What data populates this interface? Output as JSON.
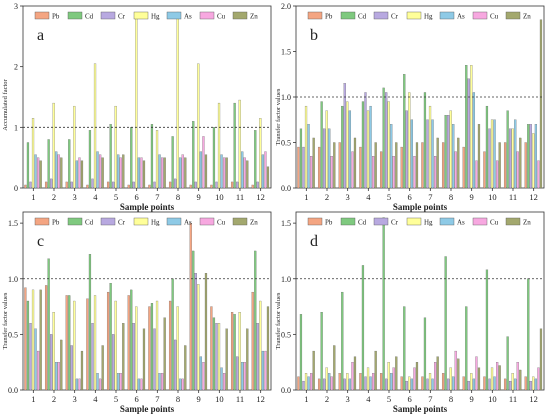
{
  "elements": [
    {
      "name": "Pb",
      "color": "#f4a582"
    },
    {
      "name": "Cd",
      "color": "#7fc97f"
    },
    {
      "name": "Cr",
      "color": "#b8a9e0"
    },
    {
      "name": "Hg",
      "color": "#ffff99"
    },
    {
      "name": "As",
      "color": "#8ecae6"
    },
    {
      "name": "Cu",
      "color": "#f7a8e0"
    },
    {
      "name": "Zn",
      "color": "#a3a86e"
    }
  ],
  "chart_data": [
    {
      "type": "bar",
      "panel_label": "a",
      "ylabel": "Accumulated factor",
      "xlabel": "Sample points",
      "categories": [
        "1",
        "2",
        "3",
        "4",
        "5",
        "6",
        "7",
        "8",
        "9",
        "10",
        "11",
        "12"
      ],
      "ylim": [
        0,
        3
      ],
      "yticks": [
        0,
        1,
        2,
        3
      ],
      "reference_line": 1,
      "series": [
        {
          "name": "Pb",
          "values": [
            0.05,
            0.1,
            0.1,
            0.05,
            0.1,
            0.05,
            0.05,
            0.1,
            0.05,
            0.05,
            0.1,
            0.05
          ]
        },
        {
          "name": "Cd",
          "values": [
            0.75,
            0.8,
            0.8,
            0.95,
            1.05,
            1.0,
            1.05,
            0.85,
            1.1,
            1.0,
            1.4,
            0.95
          ]
        },
        {
          "name": "Cr",
          "values": [
            0.1,
            0.15,
            0.1,
            0.15,
            0.1,
            0.1,
            0.1,
            0.15,
            0.1,
            0.1,
            0.1,
            0.1
          ]
        },
        {
          "name": "Hg",
          "values": [
            1.15,
            1.4,
            1.35,
            2.05,
            1.35,
            2.85,
            0.95,
            2.9,
            2.05,
            1.4,
            1.45,
            1.15
          ]
        },
        {
          "name": "As",
          "values": [
            0.55,
            0.6,
            0.45,
            0.6,
            0.55,
            0.5,
            0.55,
            0.5,
            0.6,
            0.55,
            0.6,
            0.55
          ]
        },
        {
          "name": "Cu",
          "values": [
            0.5,
            0.55,
            0.5,
            0.55,
            0.5,
            0.5,
            0.5,
            0.55,
            0.85,
            0.5,
            0.5,
            0.6
          ]
        },
        {
          "name": "Zn",
          "values": [
            0.45,
            0.5,
            0.45,
            0.5,
            0.55,
            0.45,
            0.5,
            0.5,
            0.55,
            0.5,
            0.45,
            0.35
          ]
        }
      ]
    },
    {
      "type": "bar",
      "panel_label": "b",
      "ylabel": "Transfer factor values",
      "xlabel": "Sample points",
      "categories": [
        "1",
        "2",
        "3",
        "4",
        "5",
        "6",
        "7",
        "8",
        "9",
        "10",
        "11",
        "12"
      ],
      "ylim": [
        0,
        2
      ],
      "yticks": [
        0.0,
        0.5,
        1.0,
        1.5,
        2.0
      ],
      "reference_line": 1,
      "series": [
        {
          "name": "Pb",
          "values": [
            0.45,
            0.45,
            0.5,
            0.45,
            0.4,
            0.45,
            0.5,
            0.5,
            0.45,
            0.4,
            0.5,
            0.5
          ]
        },
        {
          "name": "Cd",
          "values": [
            0.65,
            0.95,
            0.9,
            0.95,
            1.1,
            1.25,
            1.05,
            0.8,
            1.35,
            0.9,
            0.85,
            0.7
          ]
        },
        {
          "name": "Cr",
          "values": [
            0.45,
            0.65,
            1.15,
            1.05,
            1.05,
            0.85,
            0.75,
            0.8,
            1.2,
            0.65,
            0.65,
            0.7
          ]
        },
        {
          "name": "Hg",
          "values": [
            0.9,
            0.85,
            0.95,
            0.85,
            0.95,
            1.05,
            0.9,
            0.85,
            1.35,
            0.75,
            0.65,
            0.6
          ]
        },
        {
          "name": "As",
          "values": [
            0.7,
            0.65,
            0.85,
            0.9,
            0.7,
            0.75,
            0.75,
            0.7,
            1.05,
            0.75,
            0.75,
            0.7
          ]
        },
        {
          "name": "Cu",
          "values": [
            0.35,
            0.35,
            0.4,
            0.35,
            0.35,
            0.35,
            0.35,
            0.4,
            0.3,
            0.3,
            0.4,
            0.3
          ]
        },
        {
          "name": "Zn",
          "values": [
            0.55,
            0.5,
            0.55,
            0.5,
            0.5,
            0.5,
            0.55,
            0.55,
            0.7,
            0.5,
            0.55,
            1.85
          ]
        }
      ]
    },
    {
      "type": "bar",
      "panel_label": "c",
      "ylabel": "Transfer factor values",
      "xlabel": "Sample points",
      "categories": [
        "1",
        "2",
        "3",
        "4",
        "5",
        "6",
        "7",
        "8",
        "9",
        "10",
        "11",
        "12"
      ],
      "ylim": [
        0,
        1.6
      ],
      "yticks": [
        0.0,
        0.5,
        1.0,
        1.5
      ],
      "reference_line": 1,
      "series": [
        {
          "name": "Pb",
          "values": [
            0.92,
            0.94,
            0.85,
            0.82,
            0.88,
            0.85,
            0.75,
            0.8,
            1.5,
            0.75,
            0.7,
            0.88
          ]
        },
        {
          "name": "Cd",
          "values": [
            0.8,
            1.18,
            0.85,
            1.22,
            0.96,
            0.9,
            0.78,
            1.0,
            1.25,
            0.65,
            0.68,
            1.25
          ]
        },
        {
          "name": "Cr",
          "values": [
            0.6,
            0.5,
            0.4,
            0.6,
            0.5,
            0.6,
            0.55,
            0.45,
            1.05,
            0.6,
            0.3,
            0.6
          ]
        },
        {
          "name": "Hg",
          "values": [
            0.9,
            0.7,
            0.8,
            0.85,
            0.8,
            0.75,
            0.8,
            0.75,
            0.95,
            0.6,
            0.7,
            0.8
          ]
        },
        {
          "name": "As",
          "values": [
            0.55,
            0.25,
            0.1,
            0.15,
            0.15,
            0.1,
            0.15,
            0.1,
            0.3,
            0.2,
            0.25,
            0.35
          ]
        },
        {
          "name": "Cu",
          "values": [
            0.35,
            0.25,
            0.1,
            0.1,
            0.15,
            0.1,
            0.15,
            0.1,
            0.25,
            0.15,
            0.25,
            0.35
          ]
        },
        {
          "name": "Zn",
          "values": [
            0.9,
            0.45,
            0.35,
            0.4,
            0.6,
            0.55,
            0.65,
            0.4,
            1.05,
            0.55,
            0.55,
            0.75
          ]
        }
      ]
    },
    {
      "type": "bar",
      "panel_label": "d",
      "ylabel": "Transfer factor values",
      "xlabel": "Sample points",
      "categories": [
        "1",
        "2",
        "3",
        "4",
        "5",
        "6",
        "7",
        "8",
        "9",
        "10",
        "11",
        "12"
      ],
      "ylim": [
        0,
        1.6
      ],
      "yticks": [
        0.0,
        0.5,
        1.0,
        1.5
      ],
      "reference_line": 1,
      "series": [
        {
          "name": "Pb",
          "values": [
            0.12,
            0.1,
            0.15,
            0.15,
            0.15,
            0.12,
            0.12,
            0.15,
            0.12,
            0.12,
            0.1,
            0.12
          ]
        },
        {
          "name": "Cd",
          "values": [
            0.68,
            0.7,
            0.88,
            1.12,
            1.55,
            0.75,
            0.65,
            1.2,
            0.75,
            1.08,
            0.48,
            1.0
          ]
        },
        {
          "name": "Cr",
          "values": [
            0.08,
            0.1,
            0.1,
            0.12,
            0.1,
            0.08,
            0.1,
            0.1,
            0.08,
            0.1,
            0.08,
            0.08
          ]
        },
        {
          "name": "Hg",
          "values": [
            0.15,
            0.2,
            0.15,
            0.2,
            0.25,
            0.12,
            0.15,
            0.2,
            0.15,
            0.2,
            0.15,
            0.12
          ]
        },
        {
          "name": "As",
          "values": [
            0.12,
            0.15,
            0.1,
            0.12,
            0.15,
            0.1,
            0.1,
            0.12,
            0.1,
            0.12,
            0.1,
            0.1
          ]
        },
        {
          "name": "Cu",
          "values": [
            0.15,
            0.12,
            0.25,
            0.15,
            0.2,
            0.2,
            0.25,
            0.35,
            0.3,
            0.25,
            0.25,
            0.2
          ]
        },
        {
          "name": "Zn",
          "values": [
            0.35,
            0.4,
            0.3,
            0.35,
            0.3,
            0.25,
            0.3,
            0.28,
            0.2,
            0.22,
            0.18,
            0.55
          ]
        }
      ]
    }
  ]
}
